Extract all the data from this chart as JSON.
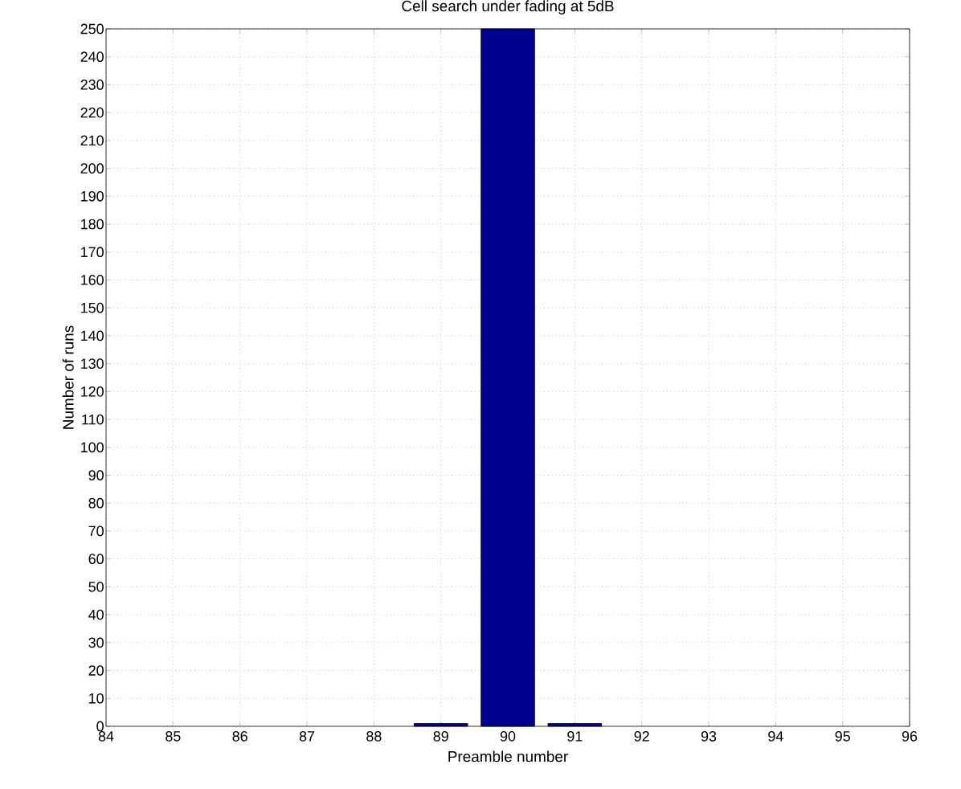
{
  "chart_data": {
    "type": "bar",
    "title": "Cell search under fading at 5dB",
    "xlabel": "Preamble number",
    "ylabel": "Number of runs",
    "x": [
      89,
      90,
      91
    ],
    "values": [
      1,
      250,
      1
    ],
    "color": "#00008f",
    "xlim": [
      84,
      96
    ],
    "xticks": [
      84,
      85,
      86,
      87,
      88,
      89,
      90,
      91,
      92,
      93,
      94,
      95,
      96
    ],
    "ylim": [
      0,
      250
    ],
    "yticks": [
      0,
      10,
      20,
      30,
      40,
      50,
      60,
      70,
      80,
      90,
      100,
      110,
      120,
      130,
      140,
      150,
      160,
      170,
      180,
      190,
      200,
      210,
      220,
      230,
      240,
      250
    ],
    "grid": true,
    "line_style": "dotted"
  }
}
